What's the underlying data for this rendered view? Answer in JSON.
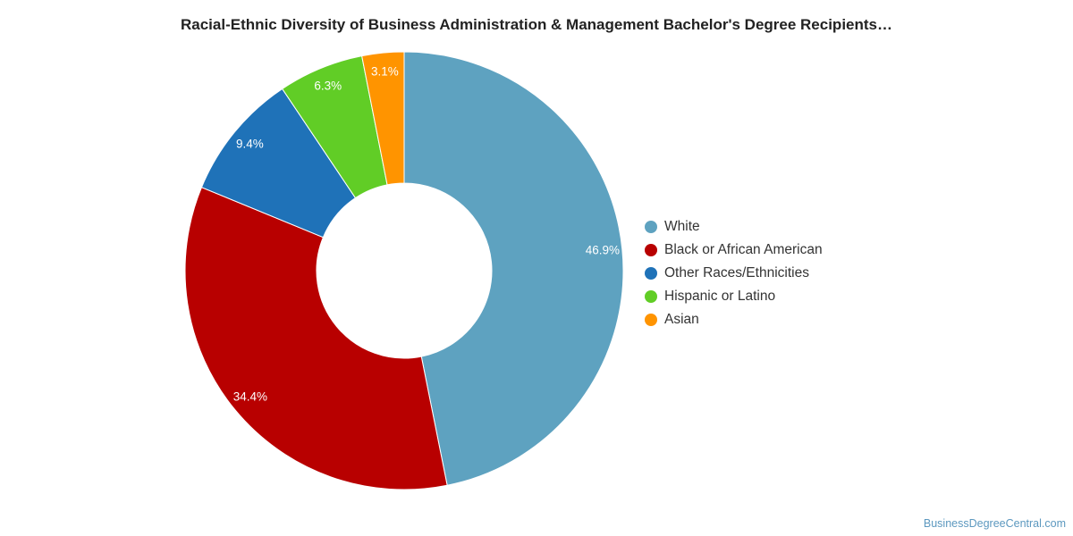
{
  "chart_data": {
    "type": "pie",
    "variant": "donut",
    "title": "Racial-Ethnic Diversity of Business Administration & Management Bachelor's Degree Recipients…",
    "categories": [
      "White",
      "Black or African American",
      "Other Races/Ethnicities",
      "Hispanic or Latino",
      "Asian"
    ],
    "values": [
      46.9,
      34.4,
      9.4,
      6.3,
      3.1
    ],
    "labels": [
      "46.9%",
      "34.4%",
      "9.4%",
      "6.3%",
      "3.1%"
    ],
    "colors": [
      "#5ea2c0",
      "#b80000",
      "#1f72b8",
      "#61cd26",
      "#ff9400"
    ],
    "legend_position": "right"
  },
  "footer": {
    "watermark": "BusinessDegreeCentral.com"
  }
}
